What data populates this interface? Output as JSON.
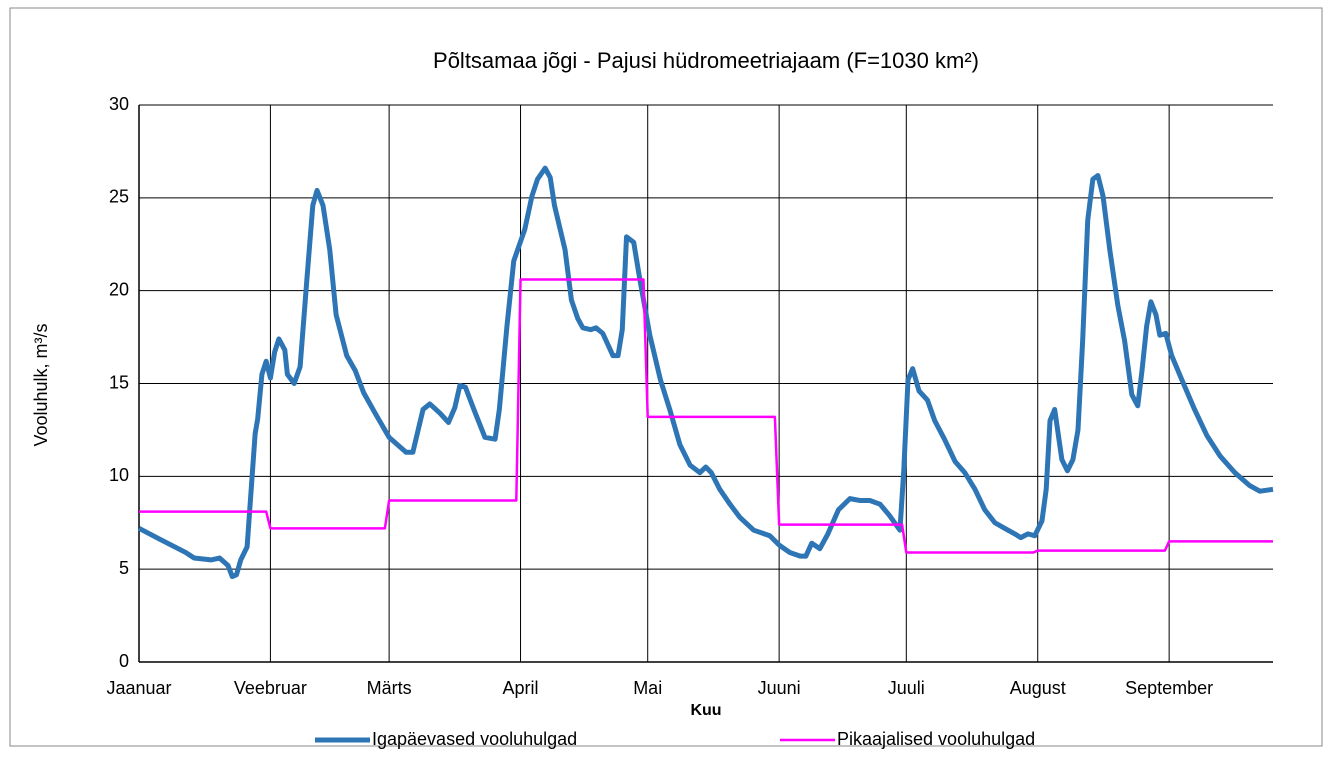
{
  "chart_data": {
    "type": "line",
    "title": "Põltsamaa jõgi - Pajusi hüdromeetriajaam (F=1030 km²)",
    "x_label": "Kuu",
    "y_label": "Vooluhulk, m³/s",
    "xlim": [
      0,
      267.5
    ],
    "xticks": [
      {
        "value": 0,
        "label": "Jaanuar"
      },
      {
        "value": 31,
        "label": "Veebruar"
      },
      {
        "value": 59,
        "label": "Märts"
      },
      {
        "value": 90,
        "label": "April"
      },
      {
        "value": 120,
        "label": "Mai"
      },
      {
        "value": 151,
        "label": "Juuni"
      },
      {
        "value": 181,
        "label": "Juuli"
      },
      {
        "value": 212,
        "label": "August"
      },
      {
        "value": 243,
        "label": "September"
      }
    ],
    "ylim": [
      0,
      30
    ],
    "yticks": [
      0,
      5,
      10,
      15,
      20,
      25,
      30
    ],
    "grid": true,
    "legend": "bottom",
    "series": [
      {
        "name": "Igapäevased vooluhulgad",
        "color": "#2e75b6",
        "x": [
          0,
          5,
          11,
          13,
          17,
          19,
          21,
          22,
          23,
          24,
          25.5,
          27.4,
          28,
          29,
          30,
          31,
          32,
          33,
          34.4,
          35,
          36.6,
          38,
          39.6,
          41,
          42,
          43.4,
          45,
          46.5,
          49,
          51,
          53,
          55.7,
          59,
          63,
          64.6,
          67,
          68.6,
          71,
          73,
          74.5,
          75.7,
          77,
          79,
          81.6,
          84,
          85,
          86.8,
          88.4,
          91,
          92.7,
          94,
          95.8,
          97,
          98,
          100.5,
          102,
          103.5,
          104.7,
          106.6,
          107.8,
          109.4,
          110.6,
          111.8,
          113,
          114,
          115,
          116.7,
          118,
          120.5,
          123,
          125.2,
          127.6,
          130,
          132.3,
          133.7,
          135,
          137,
          139.4,
          141.7,
          145,
          148.8,
          151,
          153.5,
          156,
          157.3,
          158.7,
          160.6,
          162.5,
          165,
          167.7,
          170,
          172.4,
          174.8,
          177,
          179.5,
          180.4,
          181.4,
          182.5,
          184,
          186,
          187.7,
          190,
          192.5,
          194.8,
          197.2,
          199.5,
          201.9,
          204.2,
          206.6,
          208,
          209.7,
          211.3,
          213,
          214,
          214.9,
          216,
          217.7,
          219,
          220.3,
          221.5,
          222.6,
          223.8,
          225,
          226.2,
          227.4,
          229,
          230.9,
          232.5,
          234.2,
          235.6,
          236.6,
          237.7,
          238.7,
          239.9,
          240.8,
          242.2,
          243.6,
          246,
          249,
          251.9,
          255,
          258.5,
          262,
          264.4,
          267.5
        ],
        "values": [
          7.2,
          6.6,
          5.9,
          5.6,
          5.5,
          5.6,
          5.2,
          4.6,
          4.7,
          5.5,
          6.2,
          12.3,
          13.1,
          15.5,
          16.2,
          15.3,
          16.7,
          17.4,
          16.8,
          15.5,
          15.0,
          15.9,
          20.6,
          24.6,
          25.4,
          24.6,
          22.2,
          18.7,
          16.5,
          15.7,
          14.5,
          13.4,
          12.1,
          11.3,
          11.3,
          13.6,
          13.9,
          13.4,
          12.9,
          13.7,
          14.9,
          14.8,
          13.6,
          12.1,
          12.0,
          13.6,
          18.1,
          21.6,
          23.3,
          25.1,
          26.0,
          26.6,
          26.1,
          24.6,
          22.2,
          19.5,
          18.5,
          18.0,
          17.9,
          18.0,
          17.7,
          17.1,
          16.5,
          16.5,
          17.9,
          22.9,
          22.6,
          20.8,
          17.6,
          15.2,
          13.6,
          11.7,
          10.6,
          10.2,
          10.5,
          10.2,
          9.3,
          8.5,
          7.8,
          7.1,
          6.8,
          6.3,
          5.9,
          5.7,
          5.7,
          6.4,
          6.1,
          6.9,
          8.2,
          8.8,
          8.7,
          8.7,
          8.5,
          7.9,
          7.1,
          10.3,
          15.2,
          15.8,
          14.6,
          14.1,
          13.0,
          12.0,
          10.8,
          10.2,
          9.3,
          8.2,
          7.5,
          7.2,
          6.9,
          6.7,
          6.9,
          6.8,
          7.6,
          9.3,
          13.0,
          13.6,
          10.9,
          10.3,
          10.9,
          12.5,
          17.3,
          23.8,
          26.0,
          26.2,
          25.1,
          22.2,
          19.2,
          17.3,
          14.4,
          13.8,
          15.7,
          18.1,
          19.4,
          18.7,
          17.6,
          17.7,
          16.5,
          15.2,
          13.6,
          12.2,
          11.1,
          10.2,
          9.5,
          9.2,
          9.3
        ]
      },
      {
        "name": "Pikaajalised vooluhulgad",
        "color": "#ff00ff",
        "x": [
          0,
          30,
          31,
          58,
          59,
          89,
          90,
          119,
          120,
          150,
          151,
          180,
          181,
          211,
          212,
          242,
          243,
          267.5
        ],
        "values": [
          8.1,
          8.1,
          7.2,
          7.2,
          8.7,
          8.7,
          20.6,
          20.6,
          13.2,
          13.2,
          7.4,
          7.4,
          5.9,
          5.9,
          6.0,
          6.0,
          6.5,
          6.5
        ]
      }
    ]
  }
}
